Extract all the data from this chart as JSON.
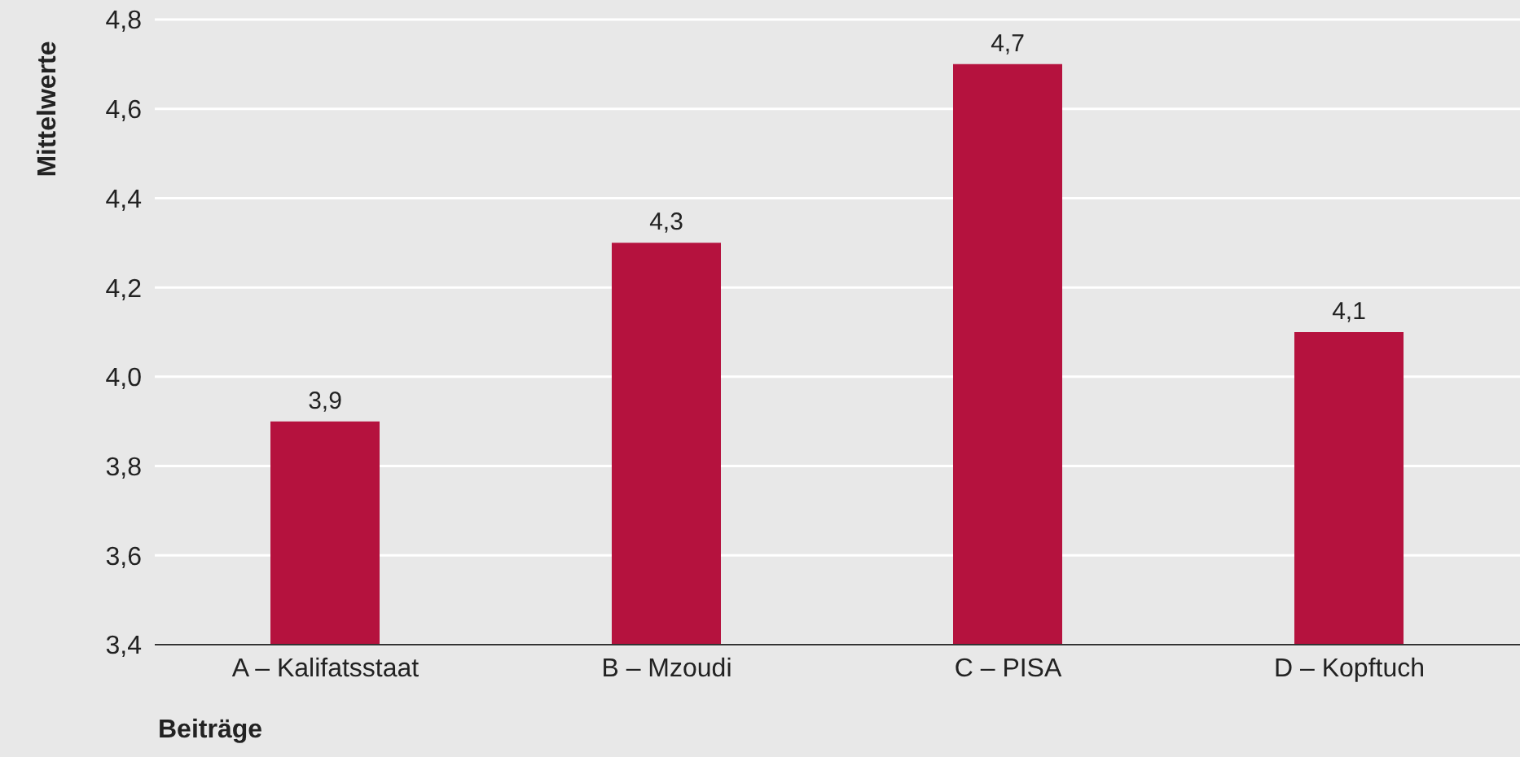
{
  "chart_data": {
    "type": "bar",
    "xlabel": "Beiträge",
    "ylabel": "Mittelwerte",
    "categories": [
      "A – Kalifatsstaat",
      "B – Mzoudi",
      "C – PISA",
      "D – Kopftuch"
    ],
    "values": [
      3.9,
      4.3,
      4.7,
      4.1
    ],
    "value_labels": [
      "3,9",
      "4,3",
      "4,7",
      "4,1"
    ],
    "color": "#b5123e",
    "ylim": [
      3.4,
      4.8
    ],
    "yticks": [
      {
        "value": 3.4,
        "label": "3,4"
      },
      {
        "value": 3.6,
        "label": "3,6"
      },
      {
        "value": 3.8,
        "label": "3,8"
      },
      {
        "value": 4.0,
        "label": "4,0"
      },
      {
        "value": 4.2,
        "label": "4,2"
      },
      {
        "value": 4.4,
        "label": "4,4"
      },
      {
        "value": 4.6,
        "label": "4,6"
      },
      {
        "value": 4.8,
        "label": "4,8"
      }
    ],
    "grid": "y"
  }
}
